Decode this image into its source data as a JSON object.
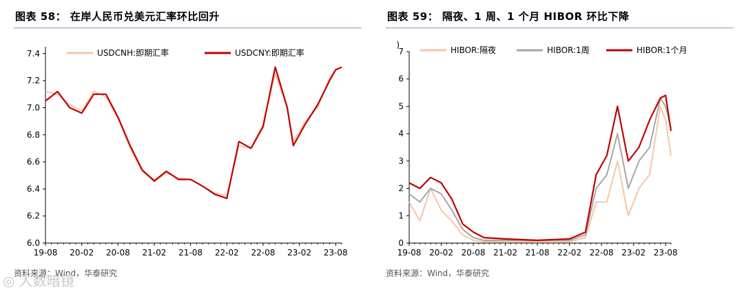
{
  "chart_data": [
    {
      "type": "line",
      "title": "图表 58：  在岸人民币兑美元汇率环比回升",
      "source": "资料来源：Wind，华泰研究",
      "x_ticks": [
        "19-08",
        "20-02",
        "20-08",
        "21-02",
        "21-08",
        "22-02",
        "22-08",
        "23-02",
        "23-08"
      ],
      "y_ticks": [
        "6.0",
        "6.2",
        "6.4",
        "6.6",
        "6.8",
        "7.0",
        "7.2",
        "7.4"
      ],
      "ylim": [
        6.0,
        7.45
      ],
      "legend_position": "top",
      "colors": {
        "USDCNH": "#f5c6a5",
        "USDCNY": "#c00000"
      },
      "series": [
        {
          "name": "USDCNH:即期汇率",
          "color": "#f5c6a5",
          "x": [
            "2019-08",
            "2019-10",
            "2019-12",
            "2020-02",
            "2020-04",
            "2020-06",
            "2020-08",
            "2020-10",
            "2020-12",
            "2021-02",
            "2021-04",
            "2021-06",
            "2021-08",
            "2021-10",
            "2021-12",
            "2022-02",
            "2022-04",
            "2022-06",
            "2022-08",
            "2022-10",
            "2022-12",
            "2023-01",
            "2023-03",
            "2023-05",
            "2023-07",
            "2023-08",
            "2023-09"
          ],
          "values": [
            7.12,
            7.1,
            7.02,
            6.98,
            7.12,
            7.08,
            6.92,
            6.7,
            6.53,
            6.45,
            6.52,
            6.48,
            6.47,
            6.42,
            6.37,
            6.35,
            6.72,
            6.7,
            6.88,
            7.25,
            7.0,
            6.75,
            6.9,
            7.0,
            7.22,
            7.28,
            7.3
          ]
        },
        {
          "name": "USDCNY:即期汇率",
          "color": "#c00000",
          "x": [
            "2019-08",
            "2019-10",
            "2019-12",
            "2020-02",
            "2020-04",
            "2020-06",
            "2020-08",
            "2020-10",
            "2020-12",
            "2021-02",
            "2021-04",
            "2021-06",
            "2021-08",
            "2021-10",
            "2021-12",
            "2022-02",
            "2022-04",
            "2022-06",
            "2022-08",
            "2022-10",
            "2022-12",
            "2023-01",
            "2023-03",
            "2023-05",
            "2023-07",
            "2023-08",
            "2023-09"
          ],
          "values": [
            7.05,
            7.12,
            7.0,
            6.96,
            7.1,
            7.1,
            6.93,
            6.72,
            6.54,
            6.46,
            6.53,
            6.47,
            6.47,
            6.42,
            6.36,
            6.33,
            6.75,
            6.7,
            6.86,
            7.3,
            7.0,
            6.72,
            6.88,
            7.02,
            7.2,
            7.28,
            7.3
          ]
        }
      ]
    },
    {
      "type": "line",
      "title": "图表 59：  隔夜、1 周、1 个月 HIBOR 环比下降",
      "source": "资料来源：Wind，华泰研究",
      "y_unit": ")",
      "x_ticks": [
        "19-08",
        "20-02",
        "20-08",
        "21-02",
        "21-08",
        "22-02",
        "22-08",
        "23-02",
        "23-08"
      ],
      "y_ticks": [
        "0",
        "1",
        "2",
        "3",
        "4",
        "5",
        "6",
        "7"
      ],
      "ylim": [
        0,
        7
      ],
      "legend_position": "top",
      "colors": {
        "overnight": "#f5c6a5",
        "week": "#a6a6a6",
        "month": "#c00000"
      },
      "series": [
        {
          "name": "HIBOR:隔夜",
          "color": "#f5c6a5",
          "x": [
            "2019-08",
            "2019-10",
            "2019-12",
            "2020-02",
            "2020-04",
            "2020-06",
            "2020-08",
            "2020-10",
            "2021-02",
            "2021-08",
            "2022-02",
            "2022-05",
            "2022-07",
            "2022-09",
            "2022-11",
            "2023-01",
            "2023-03",
            "2023-05",
            "2023-07",
            "2023-08",
            "2023-09"
          ],
          "values": [
            1.5,
            0.8,
            2.0,
            1.2,
            0.8,
            0.3,
            0.1,
            0.05,
            0.05,
            0.05,
            0.05,
            0.2,
            1.5,
            1.5,
            3.0,
            1.0,
            2.0,
            2.5,
            5.0,
            4.5,
            3.2
          ]
        },
        {
          "name": "HIBOR:1周",
          "color": "#a6a6a6",
          "x": [
            "2019-08",
            "2019-10",
            "2019-12",
            "2020-02",
            "2020-04",
            "2020-06",
            "2020-08",
            "2020-10",
            "2021-02",
            "2021-08",
            "2022-02",
            "2022-05",
            "2022-07",
            "2022-09",
            "2022-11",
            "2023-01",
            "2023-03",
            "2023-05",
            "2023-07",
            "2023-08",
            "2023-09"
          ],
          "values": [
            1.8,
            1.5,
            2.0,
            1.8,
            1.2,
            0.5,
            0.2,
            0.1,
            0.1,
            0.1,
            0.1,
            0.3,
            2.0,
            2.5,
            4.0,
            2.0,
            3.0,
            3.5,
            5.3,
            5.0,
            4.2
          ]
        },
        {
          "name": "HIBOR:1个月",
          "color": "#c00000",
          "x": [
            "2019-08",
            "2019-10",
            "2019-12",
            "2020-02",
            "2020-04",
            "2020-06",
            "2020-08",
            "2020-10",
            "2021-02",
            "2021-08",
            "2022-02",
            "2022-05",
            "2022-07",
            "2022-09",
            "2022-11",
            "2023-01",
            "2023-03",
            "2023-05",
            "2023-07",
            "2023-08",
            "2023-09"
          ],
          "values": [
            2.2,
            2.0,
            2.4,
            2.2,
            1.6,
            0.7,
            0.4,
            0.2,
            0.15,
            0.1,
            0.15,
            0.4,
            2.5,
            3.2,
            5.0,
            3.0,
            3.5,
            4.5,
            5.3,
            5.4,
            4.1
          ]
        }
      ]
    }
  ]
}
